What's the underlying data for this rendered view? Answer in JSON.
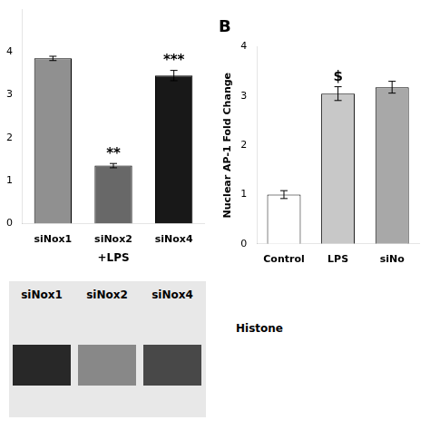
{
  "chart_data": [
    {
      "type": "bar",
      "categories": [
        "siNox1",
        "siNox2",
        "siNox4"
      ],
      "values": [
        3.85,
        1.35,
        3.45
      ],
      "errors": [
        0.05,
        0.05,
        0.12
      ],
      "colors": [
        "#909090",
        "#686868",
        "#181818"
      ],
      "xlabel": "+LPS",
      "ylim": [
        0,
        5.0
      ],
      "yticks": [
        0,
        1,
        2,
        3,
        4
      ],
      "annotations": [
        {
          "category": "siNox2",
          "text": "**"
        },
        {
          "category": "siNox4",
          "text": "***"
        }
      ],
      "grid": false,
      "legend": false
    },
    {
      "type": "bar",
      "title": "B",
      "ylabel": "Nuclear AP-1 Fold Change",
      "categories": [
        "Control",
        "LPS",
        "siNo"
      ],
      "values": [
        1.0,
        3.05,
        3.18
      ],
      "errors": [
        0.08,
        0.14,
        0.12
      ],
      "colors": [
        "#ffffff",
        "#c8c8c8",
        "#a8a8a8"
      ],
      "ylim": [
        0,
        4
      ],
      "yticks": [
        0,
        1,
        2,
        3,
        4
      ],
      "annotations": [
        {
          "category": "LPS",
          "text": "$"
        }
      ],
      "grid": false,
      "legend": false
    },
    {
      "type": "blot",
      "categories": [
        "siNox1",
        "siNox2",
        "siNox4"
      ],
      "colors": [
        "#282828",
        "#888888",
        "#484848"
      ],
      "annotations": [
        {
          "text": "Histone"
        }
      ]
    }
  ]
}
